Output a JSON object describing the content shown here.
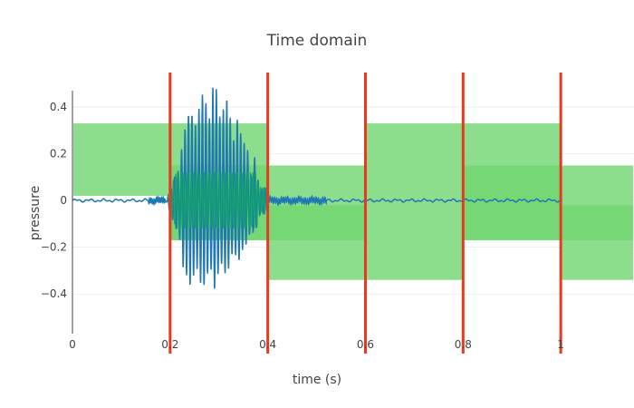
{
  "chart_data": {
    "type": "line",
    "title": "Time domain",
    "xlabel": "time (s)",
    "ylabel": "pressure",
    "xlim": [
      0,
      1.15
    ],
    "ylim": [
      -0.57,
      0.47
    ],
    "x_ticks": [
      0,
      0.2,
      0.4,
      0.6,
      0.8,
      1
    ],
    "x_tick_labels": [
      "0",
      "0.2",
      "0.4",
      "0.6",
      "0.8",
      "1"
    ],
    "y_ticks": [
      0.4,
      0.2,
      0,
      -0.2,
      -0.4
    ],
    "y_tick_labels": [
      "0.4",
      "0.2",
      "0",
      "−0.2",
      "−0.4"
    ],
    "grid": "horizontal",
    "vertical_markers": [
      0.2,
      0.4,
      0.6,
      0.8,
      1.0
    ],
    "rectangles": [
      {
        "x0": 0.0,
        "x1": 0.2,
        "y0": 0.02,
        "y1": 0.33
      },
      {
        "x0": 0.2,
        "x1": 0.4,
        "y0": -0.17,
        "y1": 0.33
      },
      {
        "x0": 0.2,
        "x1": 0.4,
        "y0": -0.17,
        "y1": 0.15
      },
      {
        "x0": 0.4,
        "x1": 0.6,
        "y0": -0.34,
        "y1": 0.15
      },
      {
        "x0": 0.4,
        "x1": 0.6,
        "y0": -0.17,
        "y1": -0.02
      },
      {
        "x0": 0.6,
        "x1": 0.8,
        "y0": -0.34,
        "y1": 0.33
      },
      {
        "x0": 0.8,
        "x1": 1.0,
        "y0": -0.17,
        "y1": 0.33
      },
      {
        "x0": 0.8,
        "x1": 1.0,
        "y0": -0.17,
        "y1": 0.15
      },
      {
        "x0": 1.0,
        "x1": 1.15,
        "y0": -0.34,
        "y1": 0.15
      },
      {
        "x0": 1.0,
        "x1": 1.15,
        "y0": -0.17,
        "y1": -0.02
      }
    ],
    "series": [
      {
        "line_color": "#1f77b4",
        "burst_peaks": [
          [
            0.195,
            0.02
          ],
          [
            0.201,
            0.05
          ],
          [
            0.207,
            0.09
          ],
          [
            0.213,
            0.12
          ],
          [
            0.219,
            0.15
          ],
          [
            0.226,
            0.27
          ],
          [
            0.233,
            0.32
          ],
          [
            0.24,
            0.37
          ],
          [
            0.247,
            0.34
          ],
          [
            0.254,
            0.3
          ],
          [
            0.261,
            0.38
          ],
          [
            0.268,
            0.42
          ],
          [
            0.275,
            0.36
          ],
          [
            0.282,
            0.3
          ],
          [
            0.289,
            0.46
          ],
          [
            0.296,
            0.4
          ],
          [
            0.303,
            0.3
          ],
          [
            0.31,
            0.35
          ],
          [
            0.317,
            0.38
          ],
          [
            0.324,
            0.3
          ],
          [
            0.331,
            0.22
          ],
          [
            0.338,
            0.32
          ],
          [
            0.345,
            0.25
          ],
          [
            0.352,
            0.22
          ],
          [
            0.359,
            0.2
          ],
          [
            0.366,
            0.1
          ],
          [
            0.373,
            0.18
          ],
          [
            0.38,
            0.08
          ],
          [
            0.387,
            0.05
          ],
          [
            0.394,
            0.06
          ],
          [
            0.401,
            0.03
          ]
        ]
      }
    ],
    "colors": {
      "rect_light": "#6fd66f",
      "rect_dark": "#32c232",
      "marker": "#e8391e",
      "signal": "#1f77b4",
      "signal_overlay": "#0f9f6f"
    }
  }
}
